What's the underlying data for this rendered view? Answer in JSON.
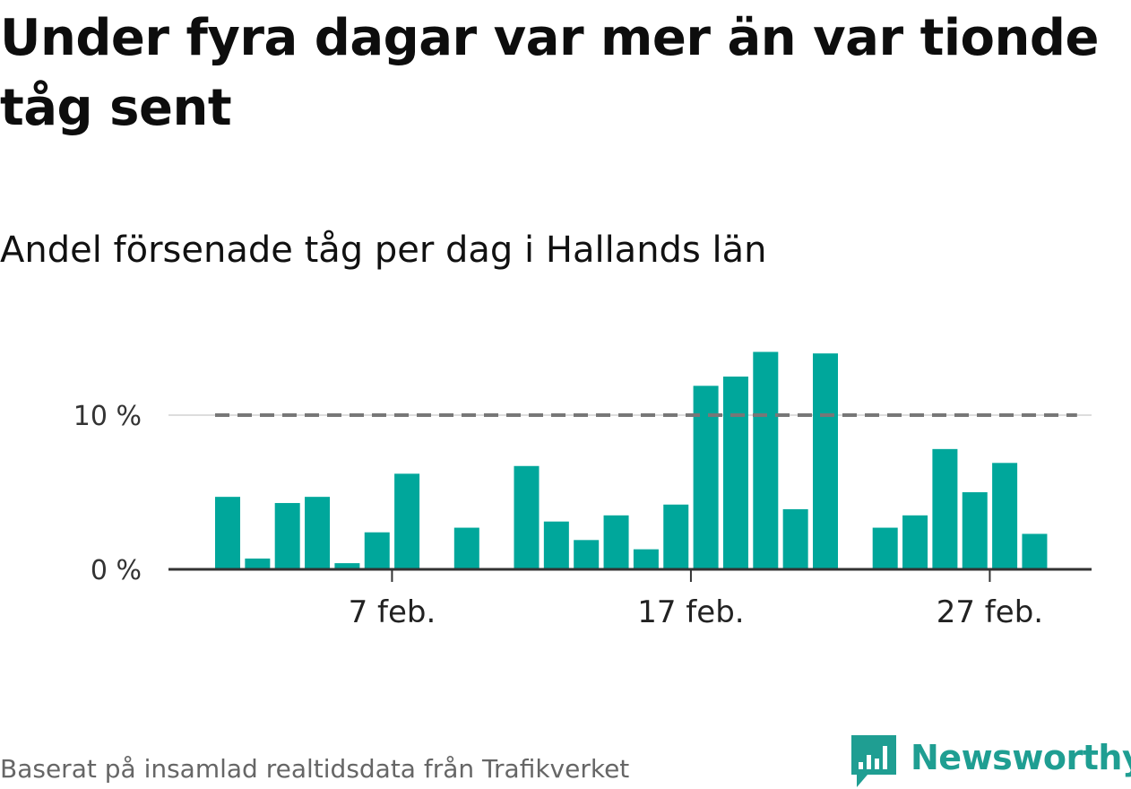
{
  "title": "Under fyra dagar var mer än var tionde tåg sent",
  "subtitle": "Andel försenade tåg per dag i Hallands län",
  "source": "Baserat på insamlad realtidsdata från Trafikverket",
  "brand": {
    "name": "Newsworthy",
    "logo_icon": "newsworthy-chart-logo-icon"
  },
  "colors": {
    "bar": "#00a79b",
    "reference_line": "#777777",
    "grid": "#dddddd",
    "axis": "#333333",
    "brand": "#1f9e92"
  },
  "chart_data": {
    "type": "bar",
    "title": "Under fyra dagar var mer än var tionde tåg sent",
    "subtitle": "Andel försenade tåg per dag i Hallands län",
    "x_unit": "day of February",
    "x": [
      1,
      2,
      3,
      4,
      5,
      6,
      7,
      8,
      9,
      10,
      11,
      12,
      13,
      14,
      15,
      16,
      17,
      18,
      19,
      20,
      21,
      22,
      23,
      24,
      25,
      26,
      27,
      28
    ],
    "values": [
      4.7,
      0.7,
      4.3,
      4.7,
      0.4,
      2.4,
      6.2,
      0,
      2.7,
      0,
      6.7,
      3.1,
      1.9,
      3.5,
      1.3,
      4.2,
      11.9,
      12.5,
      14.1,
      3.9,
      14.0,
      0,
      2.7,
      3.5,
      7.8,
      5.0,
      6.9,
      2.3
    ],
    "xlim": [
      0.5,
      30.5
    ],
    "ylim": [
      0,
      15.5
    ],
    "y_ticks": [
      {
        "value": 0,
        "label": "0 %"
      },
      {
        "value": 10,
        "label": "10 %"
      }
    ],
    "x_ticks": [
      {
        "value": 7,
        "label": "7 feb."
      },
      {
        "value": 17,
        "label": "17 feb."
      },
      {
        "value": 27,
        "label": "27 feb."
      }
    ],
    "reference_line": {
      "value": 10,
      "style": "dashed",
      "from": 1,
      "to": 29
    },
    "grid": "horizontal at ticks"
  }
}
